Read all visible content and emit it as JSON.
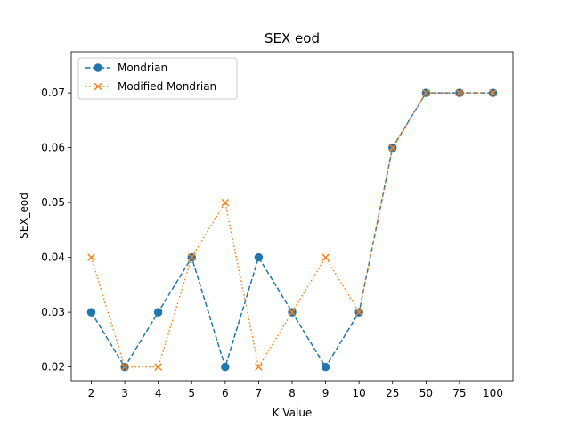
{
  "chart_data": {
    "type": "line",
    "title": "SEX eod",
    "xlabel": "K Value",
    "ylabel": "SEX_eod",
    "categories": [
      "2",
      "3",
      "4",
      "5",
      "6",
      "7",
      "8",
      "9",
      "10",
      "25",
      "50",
      "75",
      "100"
    ],
    "yticks": [
      "0.02",
      "0.03",
      "0.04",
      "0.05",
      "0.06",
      "0.07"
    ],
    "ylim": [
      0.0175,
      0.0775
    ],
    "grid": false,
    "legend_position": "top-left",
    "series": [
      {
        "name": "Mondrian",
        "values": [
          0.03,
          0.02,
          0.03,
          0.04,
          0.02,
          0.04,
          0.03,
          0.02,
          0.03,
          0.06,
          0.07,
          0.07,
          0.07
        ],
        "color": "#1f77b4",
        "line_style": "dashed",
        "marker": "circle"
      },
      {
        "name": "Modified Mondrian",
        "values": [
          0.04,
          0.02,
          0.02,
          0.04,
          0.05,
          0.02,
          0.03,
          0.04,
          0.03,
          0.06,
          0.07,
          0.07,
          0.07
        ],
        "color": "#ff7f0e",
        "line_style": "dotted",
        "marker": "x"
      }
    ]
  }
}
